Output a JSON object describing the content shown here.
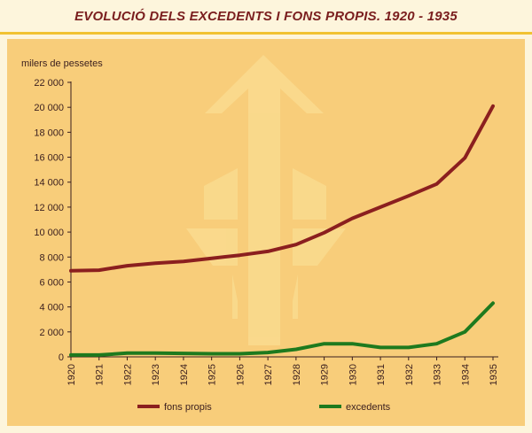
{
  "header": {
    "title": "EVOLUCIÓ DELS EXCEDENTS I FONS PROPIS. 1920 - 1935"
  },
  "chart_data": {
    "type": "line",
    "title": "EVOLUCIÓ DELS EXCEDENTS I FONS PROPIS. 1920 - 1935",
    "ylabel": "milers de pessetes",
    "xlabel": "",
    "x": [
      1920,
      1921,
      1922,
      1923,
      1924,
      1925,
      1926,
      1927,
      1928,
      1929,
      1930,
      1931,
      1932,
      1933,
      1934,
      1935
    ],
    "ylim": [
      0,
      22000
    ],
    "yticks": [
      0,
      2000,
      4000,
      6000,
      8000,
      10000,
      12000,
      14000,
      16000,
      18000,
      20000,
      22000
    ],
    "ytick_labels": [
      "0",
      "2 000",
      "4 000",
      "6 000",
      "8 000",
      "10 000",
      "12 000",
      "14 000",
      "16 000",
      "18 000",
      "20 000",
      "22 000"
    ],
    "grid": false,
    "legend_position": "bottom",
    "series": [
      {
        "name": "fons propis",
        "color": "#8b1f1f",
        "values": [
          6900,
          6950,
          7300,
          7500,
          7650,
          7900,
          8150,
          8450,
          9000,
          9950,
          11100,
          12000,
          12900,
          13850,
          15950,
          20100
        ]
      },
      {
        "name": "excedents",
        "color": "#1e7a1e",
        "values": [
          150,
          150,
          300,
          300,
          280,
          250,
          250,
          350,
          600,
          1050,
          1050,
          750,
          750,
          1050,
          2000,
          4300
        ]
      }
    ]
  }
}
